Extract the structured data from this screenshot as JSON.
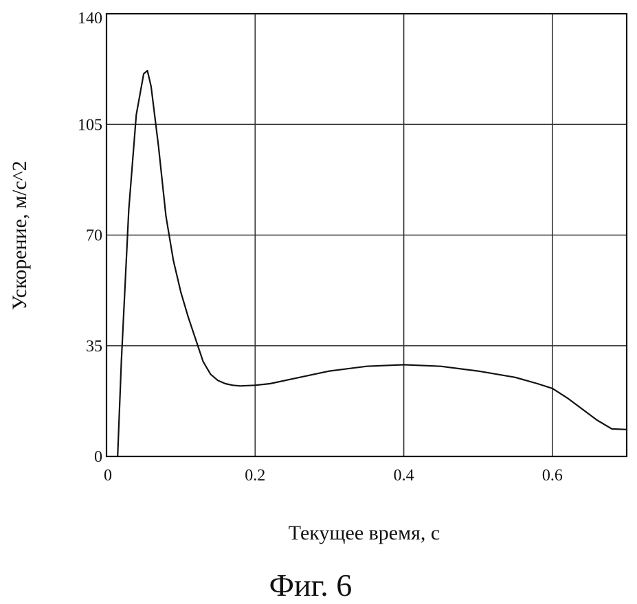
{
  "chart_data": {
    "type": "line",
    "title": "",
    "xlabel": "Текущее время, с",
    "ylabel": "Ускорение, м/с^2",
    "xlim": [
      0,
      0.7
    ],
    "ylim": [
      0,
      140
    ],
    "x_ticks": [
      0,
      0.2,
      0.4,
      0.6
    ],
    "x_tick_labels": [
      "0",
      "0.2",
      "0.4",
      "0.6"
    ],
    "y_ticks": [
      0,
      35,
      70,
      105,
      140
    ],
    "y_tick_labels": [
      "0",
      "35",
      "70",
      "105",
      "140"
    ],
    "grid": true,
    "legend": "none",
    "series": [
      {
        "color": "#111111",
        "x": [
          0.015,
          0.02,
          0.03,
          0.04,
          0.05,
          0.055,
          0.06,
          0.07,
          0.08,
          0.09,
          0.1,
          0.11,
          0.12,
          0.13,
          0.14,
          0.15,
          0.16,
          0.17,
          0.18,
          0.2,
          0.22,
          0.25,
          0.3,
          0.35,
          0.4,
          0.45,
          0.5,
          0.55,
          0.58,
          0.6,
          0.62,
          0.64,
          0.66,
          0.68,
          0.7
        ],
        "y": [
          0,
          30,
          78,
          108,
          121,
          122,
          117,
          98,
          76,
          62,
          52,
          44,
          37,
          30,
          26,
          24,
          23,
          22.5,
          22.3,
          22.5,
          23,
          24.5,
          27,
          28.5,
          29,
          28.5,
          27,
          25,
          23,
          21.5,
          18.5,
          15,
          11.5,
          8.7,
          8.5
        ]
      }
    ]
  },
  "caption": "Фиг. 6"
}
